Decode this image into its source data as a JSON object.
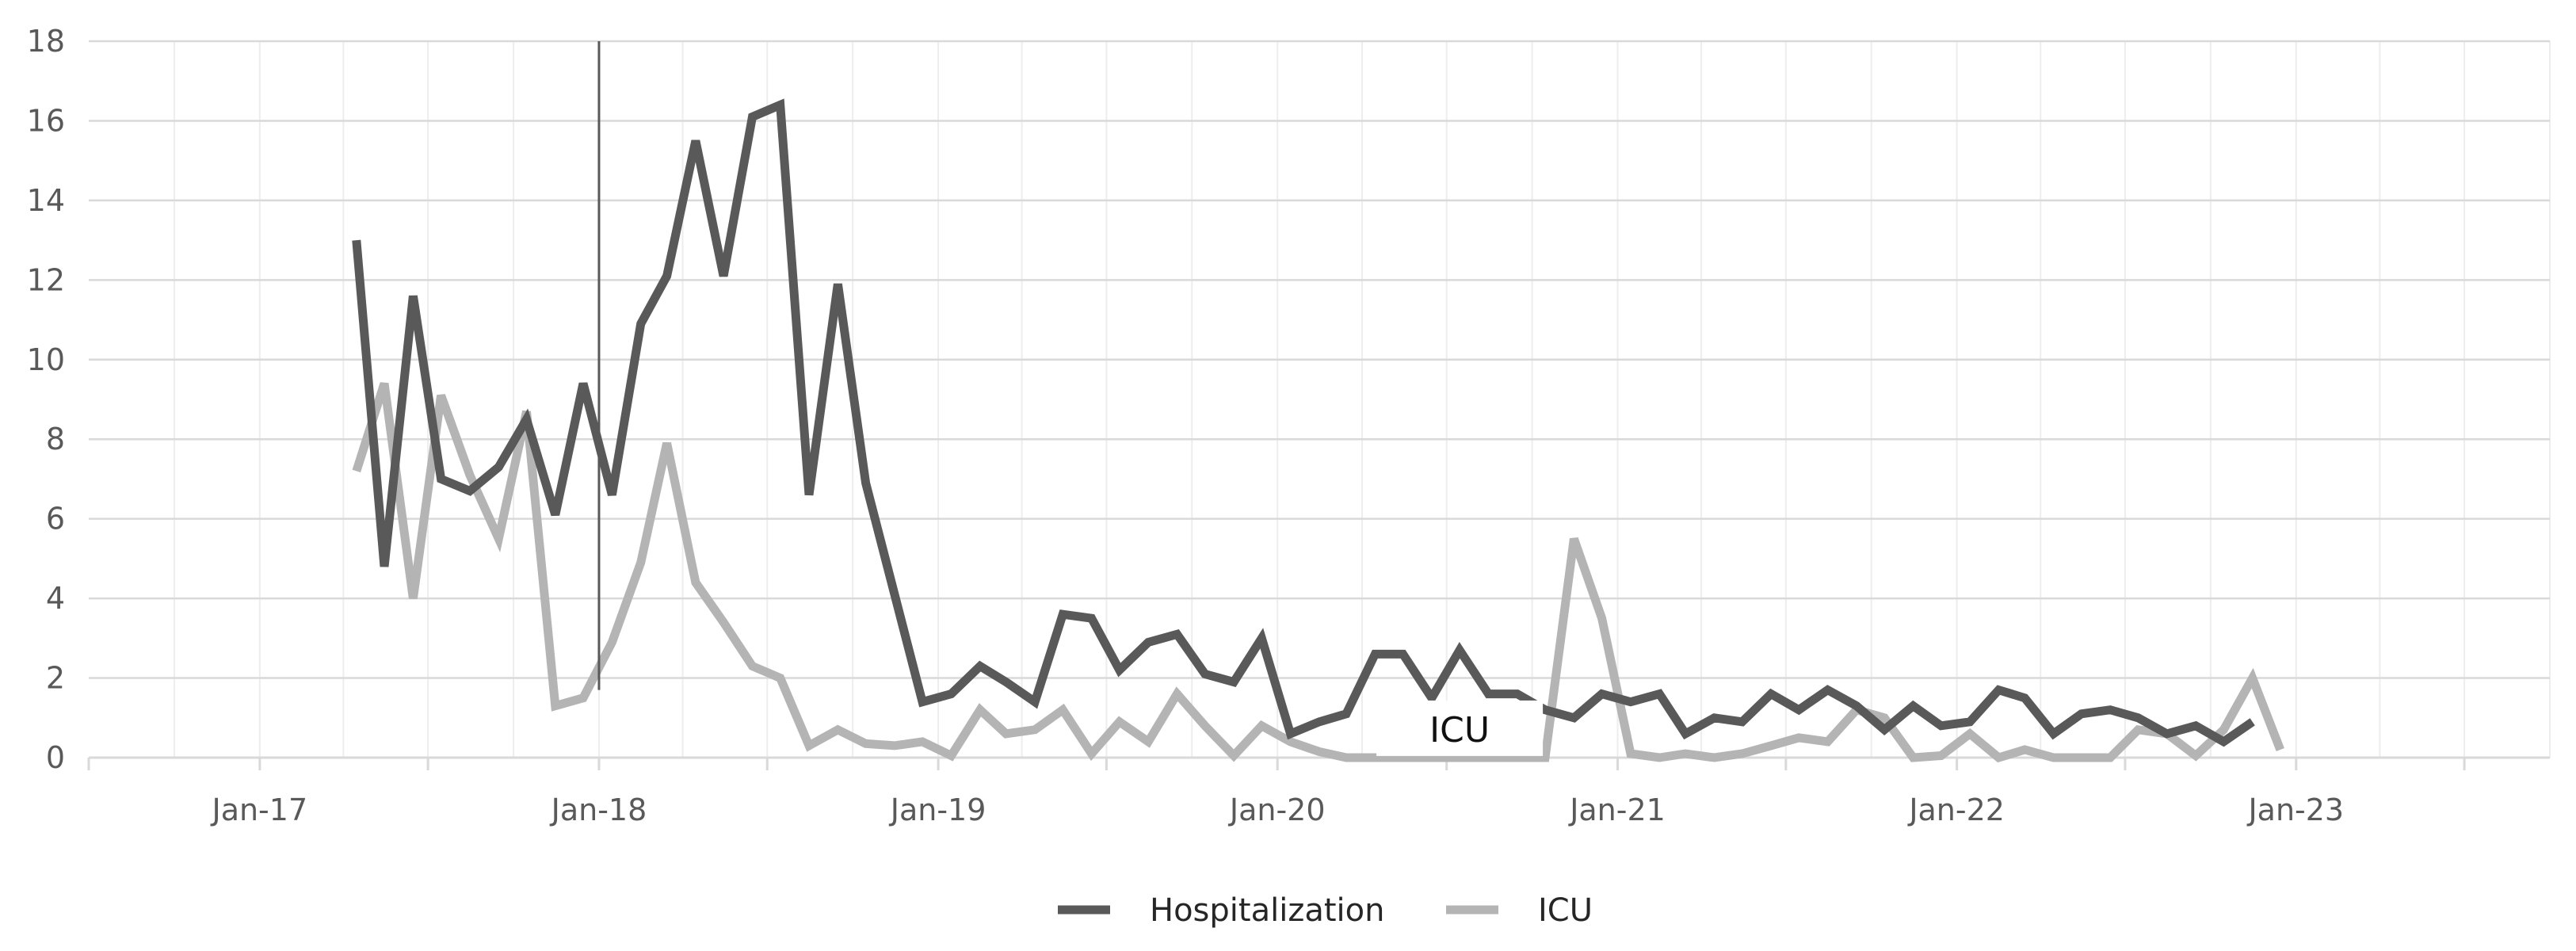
{
  "chart_data": {
    "type": "line",
    "title": "",
    "xlabel": "",
    "ylabel": "",
    "ylim": [
      0,
      18
    ],
    "yticks": [
      0,
      2,
      4,
      6,
      8,
      10,
      12,
      14,
      16,
      18
    ],
    "xlim": [
      "2016-07-01",
      "2023-10-01"
    ],
    "xticks": [
      {
        "date": "2017-01-01",
        "label": "Jan-17"
      },
      {
        "date": "2018-01-01",
        "label": "Jan-18"
      },
      {
        "date": "2019-01-01",
        "label": "Jan-19"
      },
      {
        "date": "2020-01-01",
        "label": "Jan-20"
      },
      {
        "date": "2021-01-01",
        "label": "Jan-21"
      },
      {
        "date": "2022-01-01",
        "label": "Jan-22"
      },
      {
        "date": "2023-01-01",
        "label": "Jan-23"
      }
    ],
    "grid": true,
    "legend_position": "bottom-center",
    "series": [
      {
        "name": "Hospitalization",
        "color": "#595959",
        "points": [
          [
            "2017-04-15",
            13.0
          ],
          [
            "2017-05-15",
            4.8
          ],
          [
            "2017-06-15",
            11.6
          ],
          [
            "2017-07-15",
            7.0
          ],
          [
            "2017-08-15",
            6.7
          ],
          [
            "2017-09-15",
            7.3
          ],
          [
            "2017-10-15",
            8.5
          ],
          [
            "2017-11-15",
            6.1
          ],
          [
            "2017-12-15",
            9.4
          ],
          [
            "2018-01-15",
            6.6
          ],
          [
            "2018-02-15",
            10.9
          ],
          [
            "2018-03-15",
            12.1
          ],
          [
            "2018-04-15",
            15.5
          ],
          [
            "2018-05-15",
            12.1
          ],
          [
            "2018-06-15",
            16.1
          ],
          [
            "2018-07-15",
            16.4
          ],
          [
            "2018-08-15",
            6.6
          ],
          [
            "2018-09-15",
            11.9
          ],
          [
            "2018-10-15",
            6.9
          ],
          [
            "2018-11-15",
            4.1
          ],
          [
            "2018-12-15",
            1.4
          ],
          [
            "2019-01-15",
            1.6
          ],
          [
            "2019-02-15",
            2.3
          ],
          [
            "2019-03-15",
            1.9
          ],
          [
            "2019-04-15",
            1.4
          ],
          [
            "2019-05-15",
            3.6
          ],
          [
            "2019-06-15",
            3.5
          ],
          [
            "2019-07-15",
            2.2
          ],
          [
            "2019-08-15",
            2.9
          ],
          [
            "2019-09-15",
            3.1
          ],
          [
            "2019-10-15",
            2.1
          ],
          [
            "2019-11-15",
            1.9
          ],
          [
            "2019-12-15",
            3.0
          ],
          [
            "2020-01-15",
            0.6
          ],
          [
            "2020-02-15",
            0.9
          ],
          [
            "2020-03-15",
            1.1
          ],
          [
            "2020-04-15",
            2.6
          ],
          [
            "2020-05-15",
            2.6
          ],
          [
            "2020-06-15",
            1.5
          ],
          [
            "2020-07-15",
            2.7
          ],
          [
            "2020-08-15",
            1.6
          ],
          [
            "2020-09-15",
            1.6
          ],
          [
            "2020-10-15",
            1.2
          ],
          [
            "2020-11-15",
            1.0
          ],
          [
            "2020-12-15",
            1.6
          ],
          [
            "2021-01-15",
            1.4
          ],
          [
            "2021-02-15",
            1.6
          ],
          [
            "2021-03-15",
            0.6
          ],
          [
            "2021-04-15",
            1.0
          ],
          [
            "2021-05-15",
            0.9
          ],
          [
            "2021-06-15",
            1.6
          ],
          [
            "2021-07-15",
            1.2
          ],
          [
            "2021-08-15",
            1.7
          ],
          [
            "2021-09-15",
            1.3
          ],
          [
            "2021-10-15",
            0.7
          ],
          [
            "2021-11-15",
            1.3
          ],
          [
            "2021-12-15",
            0.8
          ],
          [
            "2022-01-15",
            0.9
          ],
          [
            "2022-02-15",
            1.7
          ],
          [
            "2022-03-15",
            1.5
          ],
          [
            "2022-04-15",
            0.6
          ],
          [
            "2022-05-15",
            1.1
          ],
          [
            "2022-06-15",
            1.2
          ],
          [
            "2022-07-15",
            1.0
          ],
          [
            "2022-08-15",
            0.6
          ],
          [
            "2022-09-15",
            0.8
          ],
          [
            "2022-10-15",
            0.4
          ],
          [
            "2022-11-15",
            0.9
          ]
        ]
      },
      {
        "name": "ICU",
        "color": "#b4b4b4",
        "points": [
          [
            "2017-04-15",
            7.2
          ],
          [
            "2017-05-15",
            9.4
          ],
          [
            "2017-06-15",
            4.0
          ],
          [
            "2017-07-15",
            9.1
          ],
          [
            "2017-08-15",
            7.1
          ],
          [
            "2017-09-15",
            5.5
          ],
          [
            "2017-10-15",
            8.7
          ],
          [
            "2017-11-15",
            1.3
          ],
          [
            "2017-12-15",
            1.5
          ],
          [
            "2018-01-15",
            2.9
          ],
          [
            "2018-02-15",
            4.9
          ],
          [
            "2018-03-15",
            7.9
          ],
          [
            "2018-04-15",
            4.4
          ],
          [
            "2018-05-15",
            3.4
          ],
          [
            "2018-06-15",
            2.3
          ],
          [
            "2018-07-15",
            2.0
          ],
          [
            "2018-08-15",
            0.3
          ],
          [
            "2018-09-15",
            0.7
          ],
          [
            "2018-10-15",
            0.35
          ],
          [
            "2018-11-15",
            0.3
          ],
          [
            "2018-12-15",
            0.4
          ],
          [
            "2019-01-15",
            0.05
          ],
          [
            "2019-02-15",
            1.2
          ],
          [
            "2019-03-15",
            0.6
          ],
          [
            "2019-04-15",
            0.7
          ],
          [
            "2019-05-15",
            1.2
          ],
          [
            "2019-06-15",
            0.1
          ],
          [
            "2019-07-15",
            0.9
          ],
          [
            "2019-08-15",
            0.4
          ],
          [
            "2019-09-15",
            1.6
          ],
          [
            "2019-10-15",
            0.8
          ],
          [
            "2019-11-15",
            0.05
          ],
          [
            "2019-12-15",
            0.8
          ],
          [
            "2020-01-15",
            0.4
          ],
          [
            "2020-02-15",
            0.15
          ],
          [
            "2020-03-15",
            0.0
          ],
          [
            "2020-04-15",
            0.0
          ],
          [
            "2020-05-15",
            0.0
          ],
          [
            "2020-06-15",
            0.0
          ],
          [
            "2020-07-15",
            0.0
          ],
          [
            "2020-08-15",
            0.0
          ],
          [
            "2020-09-15",
            0.0
          ],
          [
            "2020-10-15",
            0.0
          ],
          [
            "2020-11-15",
            5.5
          ],
          [
            "2020-12-15",
            3.5
          ],
          [
            "2021-01-15",
            0.1
          ],
          [
            "2021-02-15",
            0.0
          ],
          [
            "2021-03-15",
            0.1
          ],
          [
            "2021-04-15",
            0.0
          ],
          [
            "2021-05-15",
            0.1
          ],
          [
            "2021-06-15",
            0.3
          ],
          [
            "2021-07-15",
            0.5
          ],
          [
            "2021-08-15",
            0.4
          ],
          [
            "2021-09-15",
            1.2
          ],
          [
            "2021-10-15",
            1.0
          ],
          [
            "2021-11-15",
            0.0
          ],
          [
            "2021-12-15",
            0.05
          ],
          [
            "2022-01-15",
            0.6
          ],
          [
            "2022-02-15",
            0.0
          ],
          [
            "2022-03-15",
            0.2
          ],
          [
            "2022-04-15",
            0.0
          ],
          [
            "2022-05-15",
            0.0
          ],
          [
            "2022-06-15",
            0.0
          ],
          [
            "2022-07-15",
            0.7
          ],
          [
            "2022-08-15",
            0.6
          ],
          [
            "2022-09-15",
            0.05
          ],
          [
            "2022-10-15",
            0.7
          ],
          [
            "2022-11-15",
            2.0
          ],
          [
            "2022-12-15",
            0.2
          ]
        ]
      }
    ],
    "annotations": [
      {
        "type": "vertical_line",
        "date": "2018-01-01",
        "y_from": 1.7,
        "y_to": 18.0,
        "color": "#595959"
      },
      {
        "type": "label",
        "text": "ICU",
        "date": "2020-07-15",
        "y": 0.4
      }
    ],
    "legend": [
      {
        "label": "Hospitalization",
        "color": "#595959"
      },
      {
        "label": "ICU",
        "color": "#b4b4b4"
      }
    ]
  }
}
